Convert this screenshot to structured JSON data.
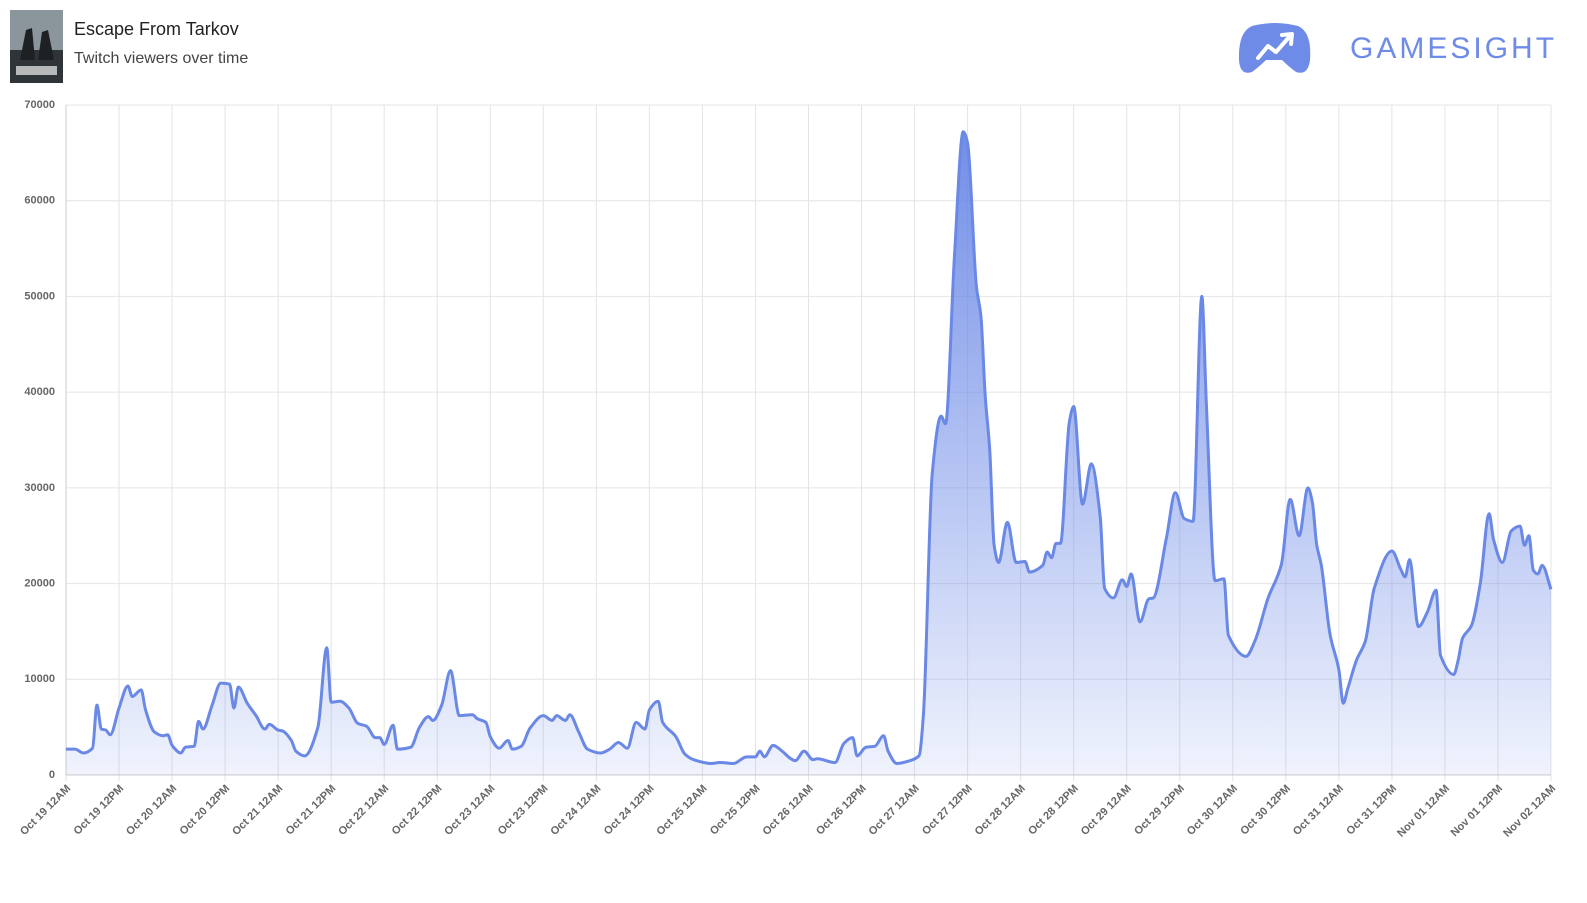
{
  "header": {
    "title": "Escape From Tarkov",
    "subtitle": "Twitch viewers over time",
    "brand": "GAMESIGHT"
  },
  "chart_data": {
    "type": "area",
    "color": "#6a88e6",
    "grid": true,
    "xlim": [
      0,
      336
    ],
    "ylim": [
      0,
      70000
    ],
    "yticks": [
      0,
      10000,
      20000,
      30000,
      40000,
      50000,
      60000,
      70000
    ],
    "xticks": [
      {
        "value": 0,
        "label": "Oct 19 12AM"
      },
      {
        "value": 12,
        "label": "Oct 19 12PM"
      },
      {
        "value": 24,
        "label": "Oct 20 12AM"
      },
      {
        "value": 36,
        "label": "Oct 20 12PM"
      },
      {
        "value": 48,
        "label": "Oct 21 12AM"
      },
      {
        "value": 60,
        "label": "Oct 21 12PM"
      },
      {
        "value": 72,
        "label": "Oct 22 12AM"
      },
      {
        "value": 84,
        "label": "Oct 22 12PM"
      },
      {
        "value": 96,
        "label": "Oct 23 12AM"
      },
      {
        "value": 108,
        "label": "Oct 23 12PM"
      },
      {
        "value": 120,
        "label": "Oct 24 12AM"
      },
      {
        "value": 132,
        "label": "Oct 24 12PM"
      },
      {
        "value": 144,
        "label": "Oct 25 12AM"
      },
      {
        "value": 156,
        "label": "Oct 25 12PM"
      },
      {
        "value": 168,
        "label": "Oct 26 12AM"
      },
      {
        "value": 180,
        "label": "Oct 26 12PM"
      },
      {
        "value": 192,
        "label": "Oct 27 12AM"
      },
      {
        "value": 204,
        "label": "Oct 27 12PM"
      },
      {
        "value": 216,
        "label": "Oct 28 12AM"
      },
      {
        "value": 228,
        "label": "Oct 28 12PM"
      },
      {
        "value": 240,
        "label": "Oct 29 12AM"
      },
      {
        "value": 252,
        "label": "Oct 29 12PM"
      },
      {
        "value": 264,
        "label": "Oct 30 12AM"
      },
      {
        "value": 276,
        "label": "Oct 30 12PM"
      },
      {
        "value": 288,
        "label": "Oct 31 12AM"
      },
      {
        "value": 300,
        "label": "Oct 31 12PM"
      },
      {
        "value": 312,
        "label": "Nov 01 12AM"
      },
      {
        "value": 324,
        "label": "Nov 01 12PM"
      },
      {
        "value": 336,
        "label": "Nov 02 12AM"
      }
    ],
    "x": [
      0,
      2,
      4,
      6,
      7,
      8,
      9,
      10,
      12,
      14,
      15,
      17,
      18,
      20,
      22,
      23,
      24,
      26,
      27,
      29,
      30,
      31,
      33,
      35,
      37,
      38,
      39,
      41,
      43,
      45,
      46,
      48,
      49,
      51,
      52,
      54,
      57,
      59,
      60,
      62,
      64,
      66,
      68,
      70,
      71,
      72,
      74,
      75,
      78,
      80,
      82,
      83,
      85,
      87,
      89,
      92,
      93,
      95,
      96,
      98,
      100,
      101,
      103,
      105,
      108,
      110,
      111,
      113,
      114,
      116,
      118,
      121,
      123,
      125,
      127,
      129,
      131,
      132,
      134,
      135,
      138,
      140,
      142,
      146,
      148,
      151,
      154,
      156,
      157,
      158,
      160,
      162,
      164,
      165,
      167,
      169,
      170,
      174,
      176,
      178,
      179,
      181,
      183,
      185,
      186,
      188,
      191,
      193,
      194,
      196,
      198,
      199,
      201,
      203,
      204,
      206,
      207,
      208,
      209,
      210,
      211,
      213,
      215,
      217,
      218,
      221,
      222,
      223,
      224,
      225,
      227,
      228,
      230,
      232,
      234,
      235,
      237,
      239,
      240,
      241,
      243,
      245,
      246,
      249,
      251,
      253,
      255,
      257,
      258,
      260,
      262,
      263,
      267,
      269,
      272,
      275,
      277,
      279,
      281,
      282,
      283,
      284,
      286,
      288,
      289,
      290,
      292,
      294,
      296,
      300,
      302,
      303,
      304,
      306,
      308,
      310,
      311,
      314,
      315,
      316,
      318,
      320,
      322,
      323,
      325,
      327,
      329,
      330,
      331,
      332,
      333,
      334,
      336
    ],
    "values": [
      2700,
      2700,
      2300,
      2800,
      7300,
      4800,
      4700,
      4200,
      7000,
      9300,
      8200,
      8900,
      6800,
      4500,
      4100,
      4200,
      3100,
      2300,
      2900,
      3000,
      5600,
      4800,
      7200,
      9600,
      9500,
      7000,
      9200,
      7500,
      6200,
      4800,
      5300,
      4700,
      4600,
      3600,
      2500,
      2000,
      5000,
      13300,
      7600,
      7700,
      7000,
      5400,
      5100,
      3900,
      3900,
      3200,
      5200,
      2700,
      2900,
      5000,
      6100,
      5700,
      7300,
      10900,
      6200,
      6300,
      5900,
      5500,
      4000,
      2800,
      3600,
      2700,
      3000,
      4900,
      6200,
      5700,
      6200,
      5700,
      6300,
      4500,
      2700,
      2300,
      2700,
      3400,
      2800,
      5500,
      4800,
      6800,
      7700,
      5500,
      4000,
      2200,
      1600,
      1200,
      1300,
      1200,
      1900,
      1900,
      2500,
      1900,
      3100,
      2500,
      1700,
      1500,
      2500,
      1600,
      1700,
      1300,
      3300,
      3900,
      2000,
      2900,
      3000,
      4100,
      2500,
      1200,
      1500,
      2000,
      6300,
      31500,
      37500,
      36700,
      54000,
      67200,
      66000,
      51000,
      48000,
      39500,
      34000,
      24000,
      22200,
      26400,
      22200,
      22300,
      21200,
      21900,
      23300,
      22700,
      24200,
      24200,
      36800,
      38500,
      28300,
      32500,
      27000,
      19500,
      18500,
      20400,
      19700,
      21000,
      16000,
      18400,
      18500,
      24800,
      29500,
      26800,
      26500,
      50000,
      39000,
      20300,
      20500,
      14600,
      12400,
      14000,
      18500,
      22000,
      28800,
      25000,
      30000,
      28500,
      24000,
      22000,
      14700,
      11000,
      7500,
      9000,
      12000,
      14000,
      19500,
      23400,
      21500,
      20700,
      22500,
      15500,
      17000,
      19300,
      12500,
      10500,
      12000,
      14300,
      15600,
      20000,
      27300,
      24600,
      22200,
      25500,
      26000,
      24000,
      25000,
      21400,
      21000,
      21900,
      19400
    ]
  }
}
